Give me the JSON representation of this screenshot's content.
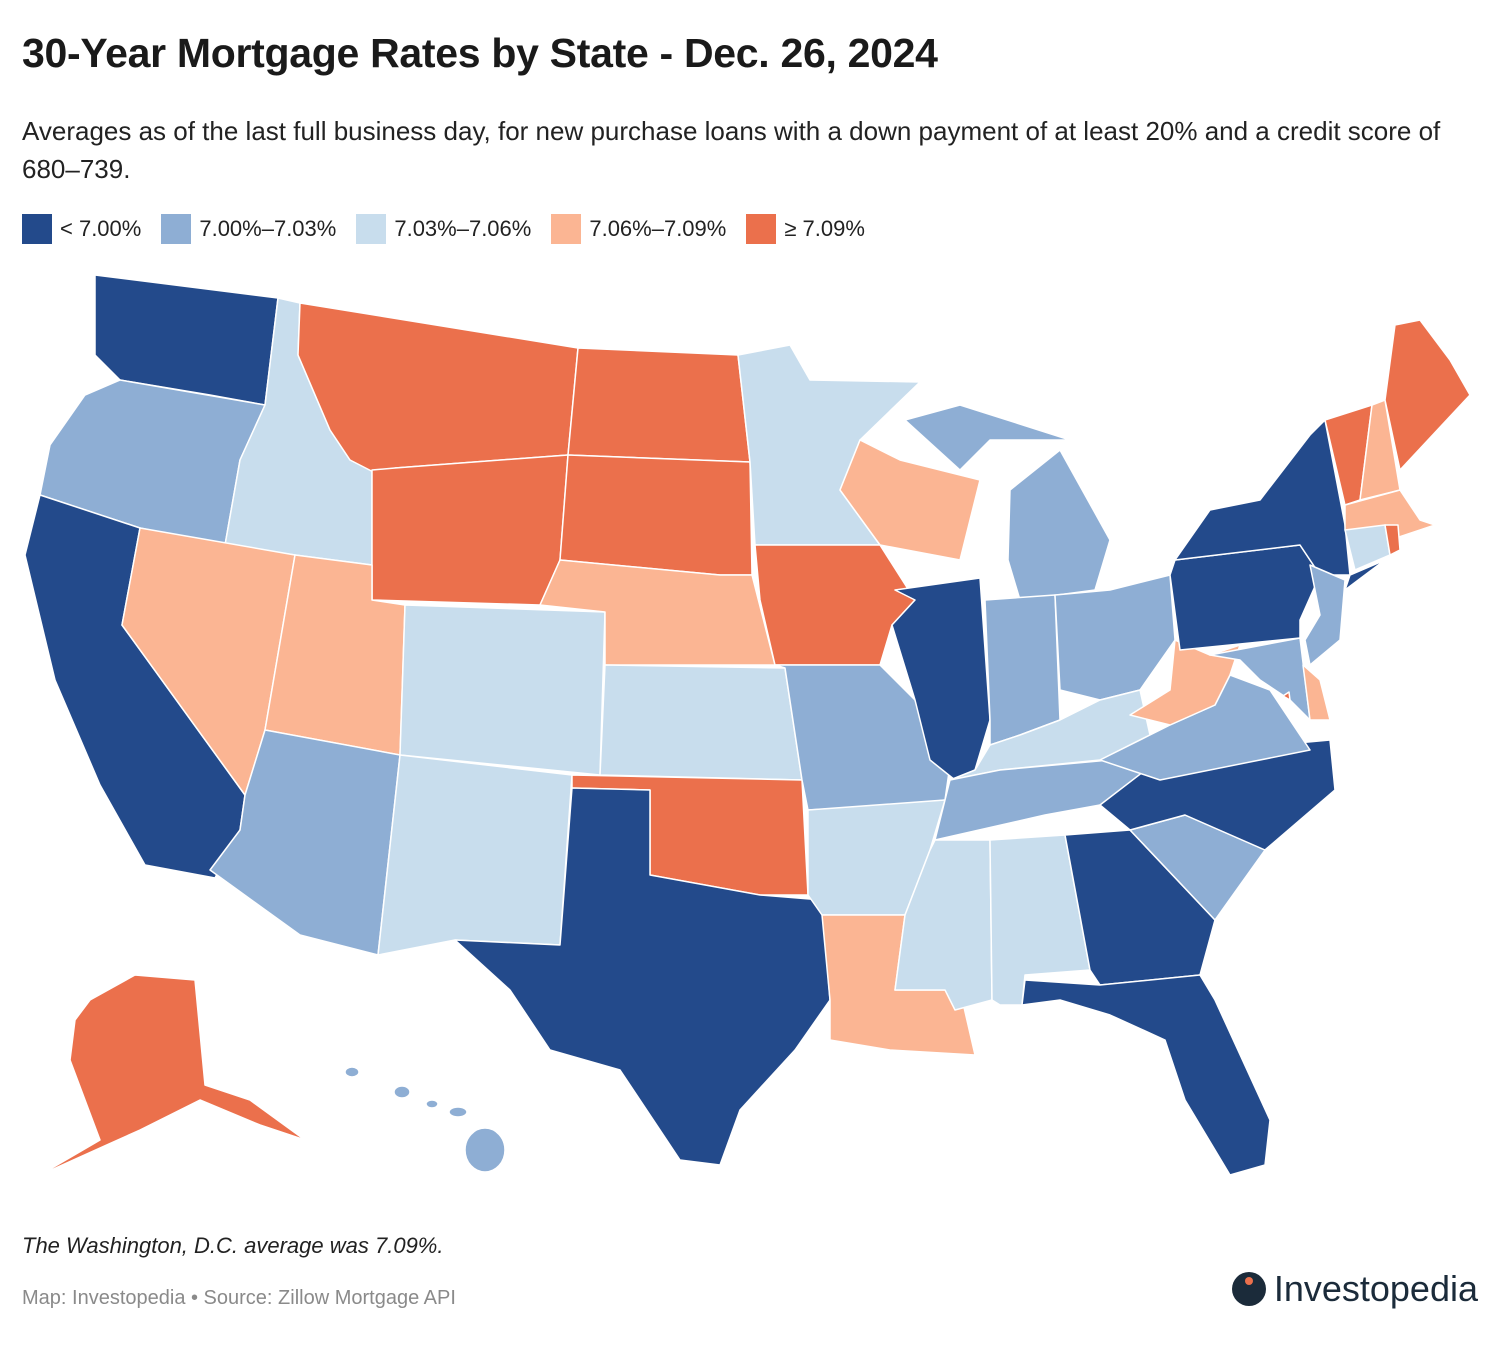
{
  "title": "30-Year Mortgage Rates by State - Dec. 26, 2024",
  "subtitle": "Averages as of the last full business day, for new purchase loans with a down payment of at least 20% and a credit score of 680–739.",
  "legend": [
    {
      "label": "< 7.00%",
      "color": "#234a8b"
    },
    {
      "label": "7.00%–7.03%",
      "color": "#8eaed4"
    },
    {
      "label": "7.03%–7.06%",
      "color": "#c8dded"
    },
    {
      "label": "7.06%–7.09%",
      "color": "#fbb593"
    },
    {
      "label": "≥ 7.09%",
      "color": "#eb704c"
    }
  ],
  "states": {
    "WA": 0,
    "CA": 0,
    "TX": 0,
    "IL": 0,
    "NY": 0,
    "PA": 0,
    "NC": 0,
    "GA": 0,
    "FL": 0,
    "OR": 1,
    "AZ": 1,
    "MO": 1,
    "MI": 1,
    "IN": 1,
    "OH": 1,
    "VA": 1,
    "TN": 1,
    "SC": 1,
    "HI": 1,
    "NJ": 1,
    "MD": 1,
    "ID": 2,
    "CO": 2,
    "KS": 2,
    "NM": 2,
    "MN": 2,
    "AR": 2,
    "MS": 2,
    "AL": 2,
    "KY": 2,
    "CT": 2,
    "NV": 3,
    "UT": 3,
    "NE": 3,
    "WI": 3,
    "LA": 3,
    "WV": 3,
    "NH": 3,
    "MA": 3,
    "DE": 3,
    "MT": 4,
    "WY": 4,
    "ND": 4,
    "SD": 4,
    "IA": 4,
    "OK": 4,
    "ME": 4,
    "VT": 4,
    "RI": 4,
    "AK": 4,
    "DC": 4
  },
  "note": "The Washington, D.C. average was 7.09%.",
  "source": "Map: Investopedia • Source: Zillow Mortgage API",
  "logo": "Investopedia"
}
